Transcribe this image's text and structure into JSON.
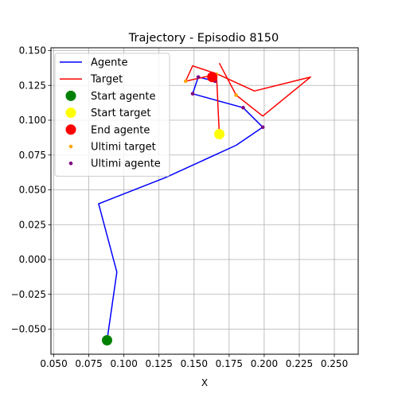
{
  "chart_data": {
    "type": "line",
    "title": "Trajectory - Episodio 8150",
    "xlabel": "X",
    "ylabel": "",
    "xlim": [
      0.048,
      0.267
    ],
    "ylim": [
      -0.068,
      0.152
    ],
    "grid": true,
    "legend_position": "top-left",
    "xticks": [
      0.05,
      0.075,
      0.1,
      0.125,
      0.15,
      0.175,
      0.2,
      0.225,
      0.25
    ],
    "xtick_labels": [
      "0.050",
      "0.075",
      "0.100",
      "0.125",
      "0.150",
      "0.175",
      "0.200",
      "0.225",
      "0.250"
    ],
    "yticks": [
      -0.05,
      -0.025,
      0.0,
      0.025,
      0.05,
      0.075,
      0.1,
      0.125,
      0.15
    ],
    "ytick_labels": [
      "−0.050",
      "−0.025",
      "0.000",
      "0.025",
      "0.050",
      "0.075",
      "0.100",
      "0.125",
      "0.150"
    ],
    "series": [
      {
        "name": "Agente",
        "kind": "line",
        "color": "#0000ff",
        "x": [
          0.088,
          0.095,
          0.082,
          0.13,
          0.18,
          0.199,
          0.185,
          0.149,
          0.153,
          0.165,
          0.163
        ],
        "y": [
          -0.058,
          -0.009,
          0.04,
          0.059,
          0.082,
          0.095,
          0.109,
          0.119,
          0.131,
          0.128,
          0.131
        ]
      },
      {
        "name": "Target",
        "kind": "line",
        "color": "#ff0000",
        "x": [
          0.168,
          0.166,
          0.144,
          0.149,
          0.167,
          0.193,
          0.233,
          0.199,
          0.18,
          0.168
        ],
        "y": [
          0.09,
          0.133,
          0.128,
          0.139,
          0.133,
          0.121,
          0.131,
          0.103,
          0.118,
          0.141
        ]
      },
      {
        "name": "Start agente",
        "kind": "marker",
        "color": "#008000",
        "x": [
          0.088
        ],
        "y": [
          -0.058
        ]
      },
      {
        "name": "Start target",
        "kind": "marker",
        "color": "#ffff00",
        "x": [
          0.168
        ],
        "y": [
          0.09
        ]
      },
      {
        "name": "End agente",
        "kind": "marker",
        "color": "#ff0000",
        "x": [
          0.163
        ],
        "y": [
          0.131
        ]
      },
      {
        "name": "Ultimi target",
        "kind": "points",
        "color": "#ffa500",
        "x": [
          0.144,
          0.18,
          0.166
        ],
        "y": [
          0.128,
          0.118,
          0.133
        ]
      },
      {
        "name": "Ultimi agente",
        "kind": "points",
        "color": "#800080",
        "x": [
          0.199,
          0.185,
          0.149,
          0.153,
          0.165,
          0.163
        ],
        "y": [
          0.095,
          0.109,
          0.119,
          0.131,
          0.128,
          0.131
        ]
      }
    ]
  }
}
